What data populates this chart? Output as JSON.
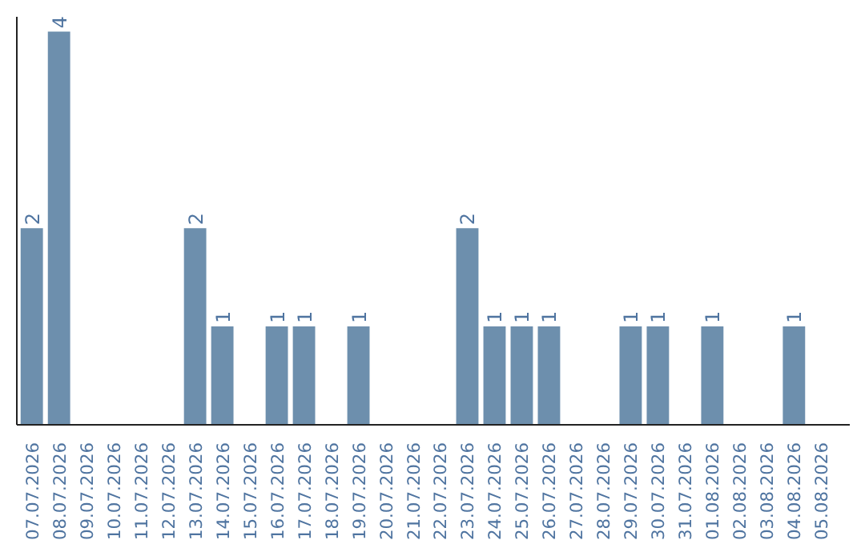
{
  "chart_data": {
    "type": "bar",
    "categories": [
      "07.07.2026",
      "08.07.2026",
      "09.07.2026",
      "10.07.2026",
      "11.07.2026",
      "12.07.2026",
      "13.07.2026",
      "14.07.2026",
      "15.07.2026",
      "16.07.2026",
      "17.07.2026",
      "18.07.2026",
      "19.07.2026",
      "20.07.2026",
      "21.07.2026",
      "22.07.2026",
      "23.07.2026",
      "24.07.2026",
      "25.07.2026",
      "26.07.2026",
      "27.07.2026",
      "28.07.2026",
      "29.07.2026",
      "30.07.2026",
      "31.07.2026",
      "01.08.2026",
      "02.08.2026",
      "03.08.2026",
      "04.08.2026",
      "05.08.2026"
    ],
    "values": [
      2,
      4,
      0,
      0,
      0,
      0,
      2,
      1,
      0,
      1,
      1,
      0,
      1,
      0,
      0,
      0,
      2,
      1,
      1,
      1,
      0,
      0,
      1,
      1,
      0,
      1,
      0,
      0,
      1,
      0
    ],
    "value_labels": [
      "2",
      "4",
      null,
      null,
      null,
      null,
      "2",
      "1",
      null,
      "1",
      "1",
      null,
      "1",
      null,
      null,
      null,
      "2",
      "1",
      "1",
      "1",
      null,
      null,
      "1",
      "1",
      null,
      "1",
      null,
      null,
      "1",
      null
    ],
    "color": "#6d8fad",
    "ylim": [
      0,
      4.15
    ],
    "tick_labels": "x",
    "grid": false
  }
}
